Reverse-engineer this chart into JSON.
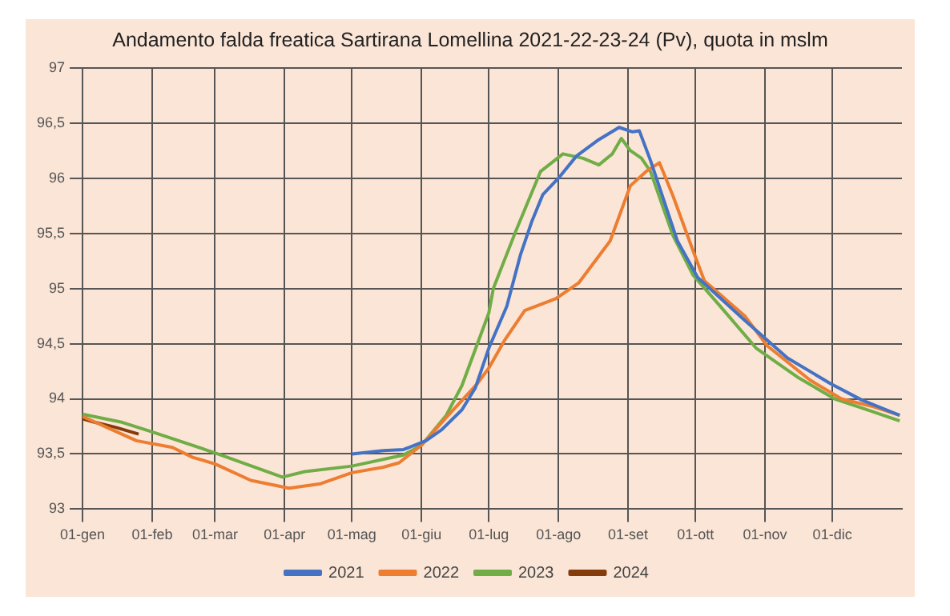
{
  "chart_data": {
    "type": "line",
    "title": "Andamento  falda freatica Sartirana Lomellina 2021-22-23-24 (Pv), quota in mslm",
    "xlim": [
      "--01-01",
      "--12-31"
    ],
    "xticks": [
      {
        "value": "--01-01",
        "label": "01-gen"
      },
      {
        "value": "--02-01",
        "label": "01-feb"
      },
      {
        "value": "--03-01",
        "label": "01-mar"
      },
      {
        "value": "--04-01",
        "label": "01-apr"
      },
      {
        "value": "--05-01",
        "label": "01-mag"
      },
      {
        "value": "--06-01",
        "label": "01-giu"
      },
      {
        "value": "--07-01",
        "label": "01-lug"
      },
      {
        "value": "--08-01",
        "label": "01-ago"
      },
      {
        "value": "--09-01",
        "label": "01-set"
      },
      {
        "value": "--10-01",
        "label": "01-ott"
      },
      {
        "value": "--11-01",
        "label": "01-nov"
      },
      {
        "value": "--12-01",
        "label": "01-dic"
      }
    ],
    "ylim": [
      93,
      97
    ],
    "yticks": [
      {
        "value": 93,
        "label": "93"
      },
      {
        "value": 93.5,
        "label": "93,5"
      },
      {
        "value": 94,
        "label": "94"
      },
      {
        "value": 94.5,
        "label": "94,5"
      },
      {
        "value": 95,
        "label": "95"
      },
      {
        "value": 95.5,
        "label": "95,5"
      },
      {
        "value": 96,
        "label": "96"
      },
      {
        "value": 96.5,
        "label": "96,5"
      },
      {
        "value": 97,
        "label": "97"
      }
    ],
    "grid": true,
    "legend": "bottom",
    "marker": "none",
    "line_style": "solid",
    "series": [
      {
        "name": "2021",
        "color": "#4472c4",
        "x": [
          "--05-01",
          "--05-15",
          "--05-24",
          "--06-03",
          "--06-10",
          "--06-19",
          "--06-25",
          "--07-01",
          "--07-09",
          "--07-15",
          "--07-20",
          "--07-25",
          "--08-01",
          "--08-09",
          "--08-19",
          "--08-28",
          "--09-03",
          "--09-06",
          "--09-11",
          "--09-23",
          "--10-02",
          "--10-23",
          "--11-11",
          "--11-30",
          "--12-14",
          "--12-31"
        ],
        "values": [
          93.5,
          93.53,
          93.54,
          93.62,
          93.72,
          93.9,
          94.1,
          94.46,
          94.84,
          95.3,
          95.6,
          95.85,
          96.0,
          96.2,
          96.35,
          96.46,
          96.42,
          96.43,
          96.16,
          95.43,
          95.1,
          94.71,
          94.37,
          94.14,
          93.99,
          93.85
        ]
      },
      {
        "name": "2022",
        "color": "#ed7d31",
        "x": [
          "--01-01",
          "--01-25",
          "--02-10",
          "--02-19",
          "--03-01",
          "--03-17",
          "--04-03",
          "--04-17",
          "--05-01",
          "--05-15",
          "--05-22",
          "--06-01",
          "--06-12",
          "--06-26",
          "--07-01",
          "--07-08",
          "--07-17",
          "--07-31",
          "--08-10",
          "--08-24",
          "--09-02",
          "--09-09",
          "--09-15",
          "--09-21",
          "--09-30",
          "--10-05",
          "--10-23",
          "--11-02",
          "--11-21",
          "--12-05",
          "--12-19",
          "--12-31"
        ],
        "values": [
          93.84,
          93.62,
          93.56,
          93.47,
          93.41,
          93.26,
          93.19,
          93.23,
          93.33,
          93.38,
          93.42,
          93.58,
          93.83,
          94.14,
          94.28,
          94.53,
          94.8,
          94.91,
          95.05,
          95.43,
          95.93,
          96.06,
          96.14,
          95.84,
          95.34,
          95.07,
          94.75,
          94.48,
          94.17,
          94.0,
          93.93,
          93.85
        ]
      },
      {
        "name": "2023",
        "color": "#70ad47",
        "x": [
          "--01-01",
          "--01-18",
          "--02-01",
          "--03-01",
          "--03-31",
          "--04-10",
          "--05-01",
          "--05-24",
          "--06-01",
          "--06-12",
          "--06-19",
          "--07-01",
          "--07-03",
          "--07-13",
          "--07-24",
          "--08-03",
          "--08-12",
          "--08-19",
          "--08-25",
          "--08-29",
          "--09-02",
          "--09-07",
          "--09-11",
          "--09-21",
          "--09-30",
          "--10-12",
          "--10-28",
          "--11-16",
          "--12-02",
          "--12-18",
          "--12-31"
        ],
        "values": [
          93.86,
          93.79,
          93.7,
          93.51,
          93.29,
          93.34,
          93.39,
          93.49,
          93.58,
          93.85,
          94.12,
          94.78,
          95.0,
          95.52,
          96.06,
          96.22,
          96.18,
          96.12,
          96.22,
          96.36,
          96.25,
          96.18,
          96.06,
          95.48,
          95.12,
          94.84,
          94.46,
          94.19,
          94.0,
          93.89,
          93.8
        ]
      },
      {
        "name": "2024",
        "color": "#843c0c",
        "x": [
          "--01-01",
          "--01-06",
          "--01-16",
          "--01-26"
        ],
        "values": [
          93.82,
          93.79,
          93.74,
          93.68
        ]
      }
    ]
  }
}
